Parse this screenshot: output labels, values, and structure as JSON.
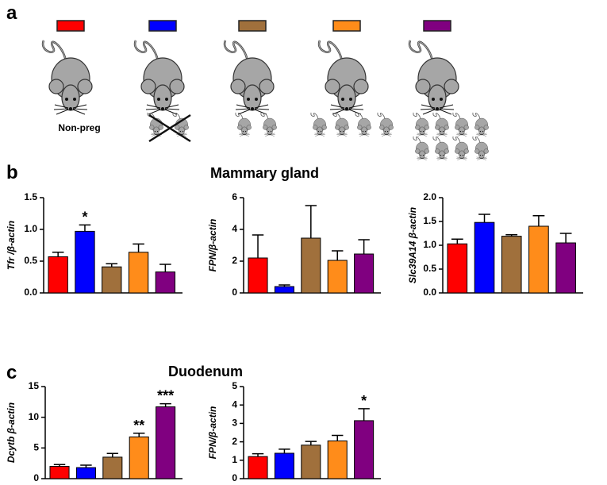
{
  "panel_labels": [
    "a",
    "b",
    "c"
  ],
  "section_titles": [
    "Mammary gland",
    "Duodenum"
  ],
  "group_label": "Non-preg",
  "group_colors": [
    "#ff0000",
    "#0000ff",
    "#a0703c",
    "#ff8c1a",
    "#800080"
  ],
  "chart_data": [
    {
      "type": "bar",
      "y_label": "Tfr /β-actin",
      "categories": [
        null,
        null,
        null,
        null,
        null
      ],
      "values": [
        0.57,
        0.97,
        0.41,
        0.64,
        0.33
      ],
      "errors": [
        0.07,
        0.1,
        0.05,
        0.13,
        0.12
      ],
      "colors": [
        "#ff0000",
        "#0000ff",
        "#a0703c",
        "#ff8c1a",
        "#800080"
      ],
      "ylim": [
        0,
        1.5
      ],
      "yticks": [
        {
          "value": 0,
          "label": "0.0"
        },
        {
          "value": 0.5,
          "label": "0.5"
        },
        {
          "value": 1,
          "label": "1.0"
        },
        {
          "value": 1.5,
          "label": "1.5"
        }
      ],
      "annotations": [
        {
          "index": 1,
          "text": "*"
        }
      ]
    },
    {
      "type": "bar",
      "y_label": "FPN/β-actin",
      "categories": [
        null,
        null,
        null,
        null,
        null
      ],
      "values": [
        2.2,
        0.4,
        3.45,
        2.05,
        2.45
      ],
      "errors": [
        1.45,
        0.1,
        2.05,
        0.6,
        0.9
      ],
      "colors": [
        "#ff0000",
        "#0000ff",
        "#a0703c",
        "#ff8c1a",
        "#800080"
      ],
      "ylim": [
        0,
        6
      ],
      "yticks": [
        0,
        2,
        4,
        6
      ]
    },
    {
      "type": "bar",
      "y_label": "Slc39A14 β-actin",
      "categories": [
        null,
        null,
        null,
        null,
        null
      ],
      "values": [
        1.03,
        1.48,
        1.19,
        1.4,
        1.05
      ],
      "errors": [
        0.1,
        0.17,
        0.03,
        0.22,
        0.2
      ],
      "colors": [
        "#ff0000",
        "#0000ff",
        "#a0703c",
        "#ff8c1a",
        "#800080"
      ],
      "ylim": [
        0,
        2
      ],
      "yticks": [
        {
          "value": 0,
          "label": "0.0"
        },
        {
          "value": 0.5,
          "label": "0.5"
        },
        {
          "value": 1,
          "label": "1.0"
        },
        {
          "value": 1.5,
          "label": "1.5"
        },
        {
          "value": 2,
          "label": "2.0"
        }
      ]
    },
    {
      "type": "bar",
      "y_label": "Dcytb β-actin",
      "categories": [
        null,
        null,
        null,
        null,
        null
      ],
      "values": [
        2.0,
        1.8,
        3.5,
        6.8,
        11.7
      ],
      "errors": [
        0.3,
        0.4,
        0.6,
        0.6,
        0.5
      ],
      "colors": [
        "#ff0000",
        "#0000ff",
        "#a0703c",
        "#ff8c1a",
        "#800080"
      ],
      "ylim": [
        0,
        15
      ],
      "yticks": [
        0,
        5,
        10,
        15
      ],
      "annotations": [
        {
          "index": 3,
          "text": "**"
        },
        {
          "index": 4,
          "text": "***"
        }
      ]
    },
    {
      "type": "bar",
      "y_label": "FPN/β-actin",
      "categories": [
        null,
        null,
        null,
        null,
        null
      ],
      "values": [
        1.2,
        1.38,
        1.82,
        2.05,
        3.15
      ],
      "errors": [
        0.15,
        0.22,
        0.2,
        0.3,
        0.65
      ],
      "colors": [
        "#ff0000",
        "#0000ff",
        "#a0703c",
        "#ff8c1a",
        "#800080"
      ],
      "ylim": [
        0,
        5
      ],
      "yticks": [
        0,
        1,
        2,
        3,
        4,
        5
      ],
      "annotations": [
        {
          "index": 4,
          "text": "*"
        }
      ]
    }
  ]
}
